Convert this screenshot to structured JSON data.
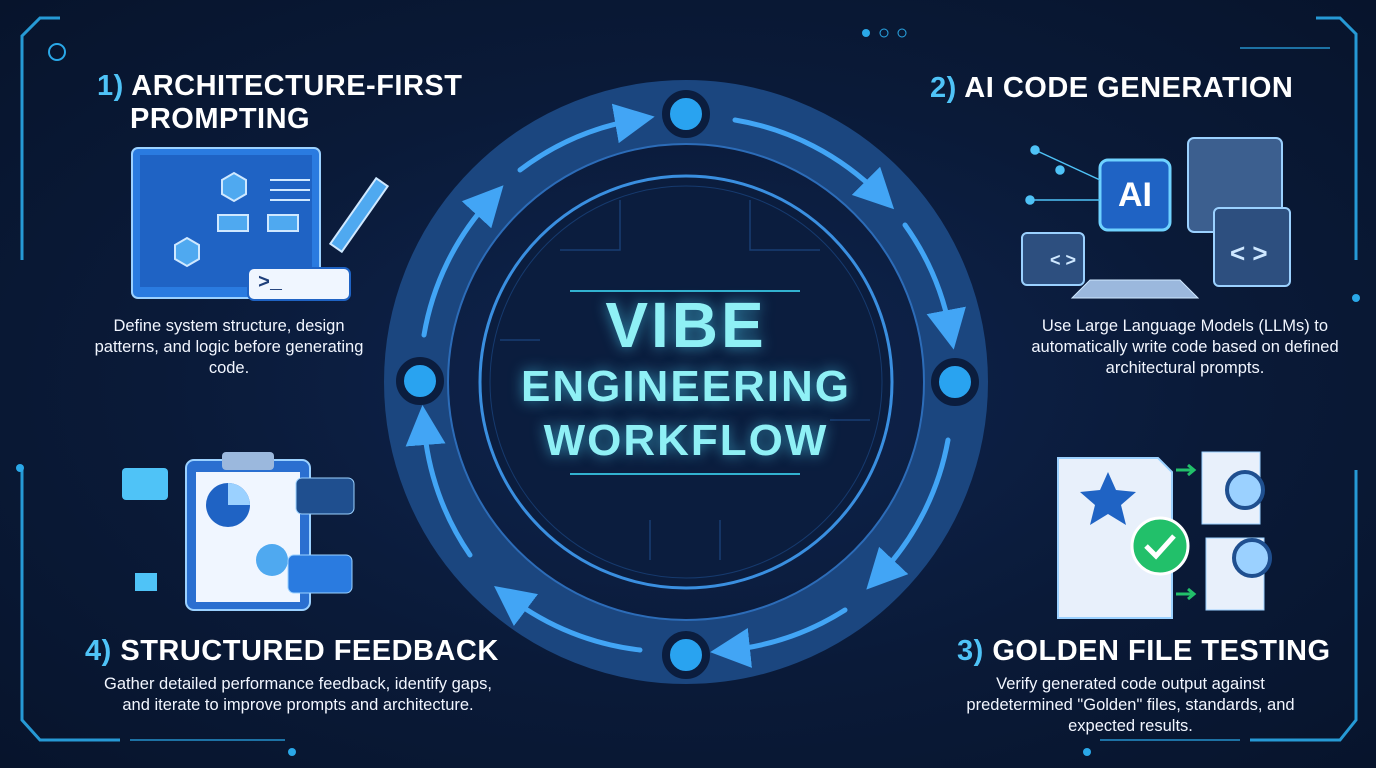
{
  "center": {
    "line1": "VIBE",
    "line2": "ENGINEERING",
    "line3": "WORKFLOW"
  },
  "steps": [
    {
      "num": "1)",
      "title_a": "ARCHITECTURE-FIRST",
      "title_b": "PROMPTING",
      "desc": "Define system structure, design patterns, and logic before generating code.",
      "icon": "blueprint-pencil-icon",
      "terminal": ">_"
    },
    {
      "num": "2)",
      "title": "AI CODE GENERATION",
      "desc": "Use Large Language Models (LLMs) to automatically write code based on defined architectural prompts.",
      "icon": "ai-chip-code-icon",
      "chip": "AI"
    },
    {
      "num": "3)",
      "title": "GOLDEN FILE TESTING",
      "desc": "Verify generated code output against predetermined \"Golden\" files, standards, and expected results.",
      "icon": "golden-file-check-icon"
    },
    {
      "num": "4)",
      "title": "STRUCTURED FEEDBACK",
      "desc": "Gather detailed performance feedback, identify gaps, and iterate to improve prompts and architecture.",
      "icon": "clipboard-feedback-icon"
    }
  ],
  "colors": {
    "background": "#0a1a38",
    "accent": "#4fc3f7",
    "ring": "#1d4f8f",
    "center_text": "#8ff0f5"
  }
}
